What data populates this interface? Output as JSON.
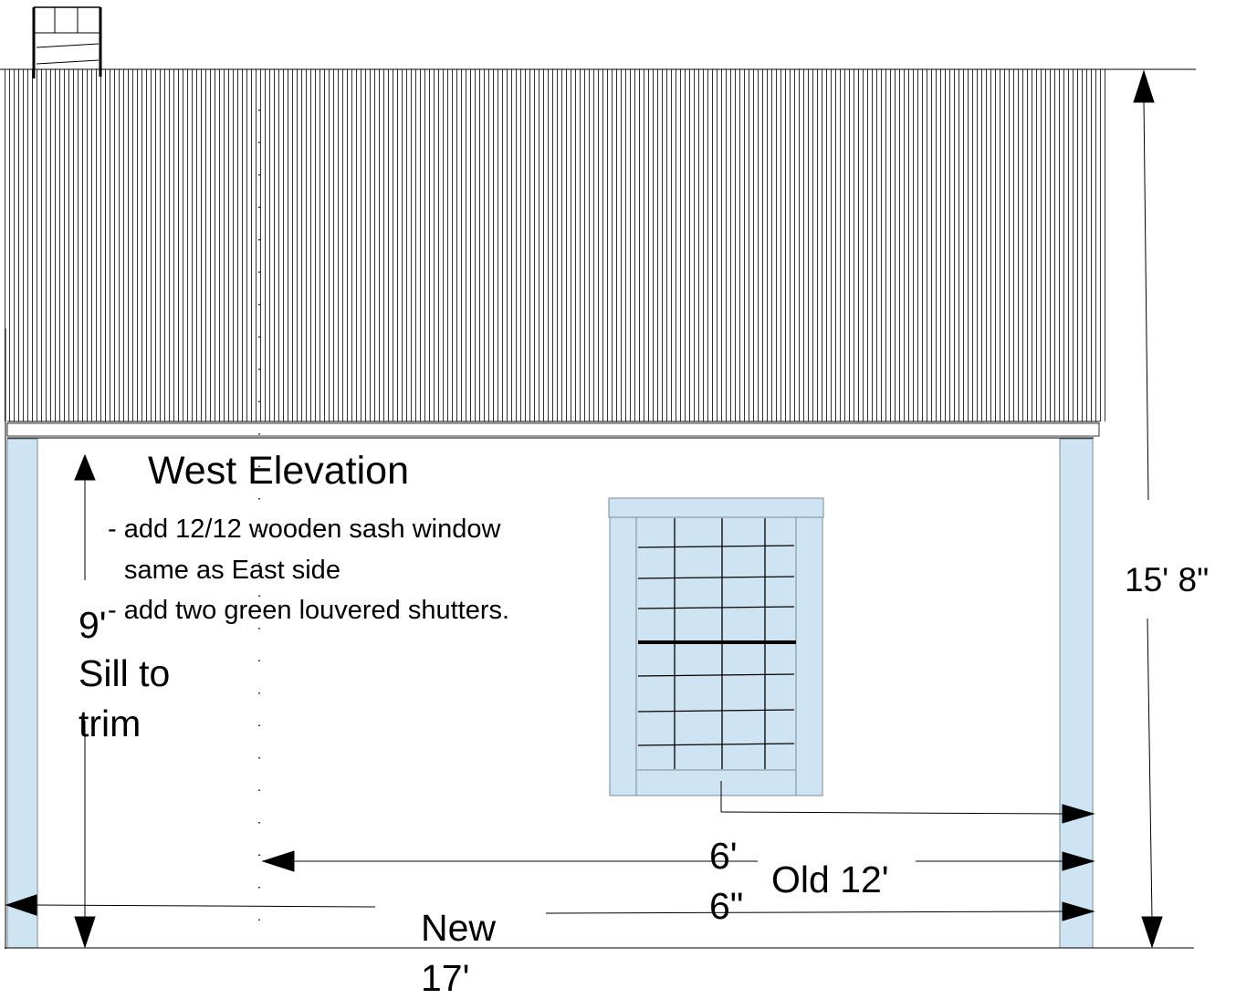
{
  "drawing": {
    "title": "West Elevation",
    "notes": [
      "- add 12/12 wooden sash window",
      "same as East side",
      "- add two green louvered shutters."
    ],
    "dim_height_main": "15' 8\"",
    "dim_sill_to_trim": [
      "9'",
      "Sill to",
      "trim"
    ],
    "dim_window_offset": [
      "6'",
      "6\""
    ],
    "dim_old_width": "Old 12'",
    "dim_new_width": [
      "New",
      "17'"
    ]
  },
  "colors": {
    "trim_fill": "#cfe4f3",
    "trim_stroke": "#7a8a96",
    "line": "#000000"
  }
}
